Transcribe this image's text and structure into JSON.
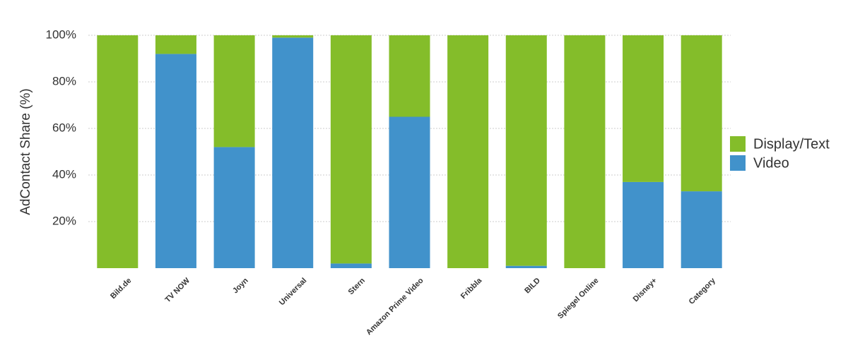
{
  "chart_data": {
    "type": "stacked_bar",
    "y_label": "AdContact Share (%)",
    "categories": [
      "Bild.de",
      "TV NOW",
      "Joyn",
      "Universal",
      "Stern",
      "Amazon Prime Video",
      "Fribbla",
      "BILD",
      "Spiegel Online",
      "Disney+",
      "Category"
    ],
    "series": [
      {
        "name": "Video",
        "color": "#4192cb",
        "values": [
          0,
          92,
          52,
          99,
          2,
          65,
          0,
          1,
          0,
          37,
          33
        ]
      },
      {
        "name": "Display/Text",
        "color": "#84bd2a",
        "values": [
          100,
          8,
          48,
          1,
          98,
          35,
          100,
          99,
          100,
          63,
          67
        ]
      }
    ],
    "ylim": [
      0,
      100
    ],
    "yticks": [
      {
        "value": 20,
        "label": "20%"
      },
      {
        "value": 40,
        "label": "40%"
      },
      {
        "value": 60,
        "label": "60%"
      },
      {
        "value": 80,
        "label": "80%"
      },
      {
        "value": 100,
        "label": "100%"
      }
    ],
    "grid": true,
    "legend": "right"
  }
}
